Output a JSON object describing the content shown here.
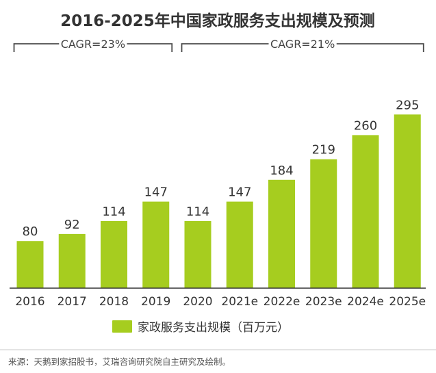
{
  "title": "2016-2025年中国家政服务支出规模及预测",
  "cagr": [
    {
      "label": "CAGR=23%",
      "range": [
        "2016",
        "2019"
      ]
    },
    {
      "label": "CAGR=21%",
      "range": [
        "2020",
        "2025e"
      ]
    }
  ],
  "chart_data": {
    "type": "bar",
    "title": "2016-2025年中国家政服务支出规模及预测",
    "categories": [
      "2016",
      "2017",
      "2018",
      "2019",
      "2020",
      "2021e",
      "2022e",
      "2023e",
      "2024e",
      "2025e"
    ],
    "series": [
      {
        "name": "家政服务支出规模（百万元）",
        "values": [
          80,
          92,
          114,
          147,
          114,
          147,
          184,
          219,
          260,
          295
        ]
      }
    ],
    "xlabel": "",
    "ylabel": "",
    "ylim": [
      0,
      300
    ],
    "grid": false,
    "legend_position": "bottom-center",
    "data_labels": true
  },
  "legend": {
    "label": "家政服务支出规模（百万元）"
  },
  "source": "来源：天鹅到家招股书，艾瑞咨询研究院自主研究及绘制。",
  "colors": {
    "bar": "#a6cd1f",
    "text": "#333333"
  }
}
